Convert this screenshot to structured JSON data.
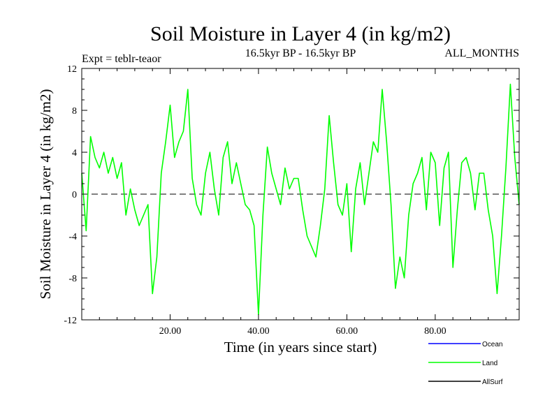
{
  "chart_data": {
    "type": "line",
    "title": "Soil Moisture in Layer 4 (in kg/m2)",
    "subtitle": "16.5kyr BP - 16.5kyr BP",
    "experiment": "Expt = teblr-teaor",
    "period": "ALL_MONTHS",
    "xlabel": "Time (in years since start)",
    "ylabel": "Soil Moisture in Layer 4 (in kg/m2)",
    "xlim": [
      0,
      99
    ],
    "ylim": [
      -12,
      12
    ],
    "x_ticks": [
      20,
      40,
      60,
      80
    ],
    "x_tick_labels": [
      "20.00",
      "40.00",
      "60.00",
      "80.00"
    ],
    "y_ticks": [
      -12,
      -8,
      -4,
      0,
      4,
      8,
      12
    ],
    "y_tick_labels": [
      "-12",
      "-8",
      "-4",
      "0",
      "4",
      "8",
      "12"
    ],
    "reference_line": 0,
    "legend": [
      {
        "name": "Ocean",
        "color": "#0000ff"
      },
      {
        "name": "Land",
        "color": "#00ff00"
      },
      {
        "name": "AllSurf",
        "color": "#000000"
      }
    ],
    "series": [
      {
        "name": "Land",
        "color": "#00ff00",
        "x": [
          0,
          1,
          2,
          3,
          4,
          5,
          6,
          7,
          8,
          9,
          10,
          11,
          12,
          13,
          14,
          15,
          16,
          17,
          18,
          19,
          20,
          21,
          22,
          23,
          24,
          25,
          26,
          27,
          28,
          29,
          30,
          31,
          32,
          33,
          34,
          35,
          36,
          37,
          38,
          39,
          40,
          41,
          42,
          43,
          44,
          45,
          46,
          47,
          48,
          49,
          50,
          51,
          52,
          53,
          54,
          55,
          56,
          57,
          58,
          59,
          60,
          61,
          62,
          63,
          64,
          65,
          66,
          67,
          68,
          69,
          70,
          71,
          72,
          73,
          74,
          75,
          76,
          77,
          78,
          79,
          80,
          81,
          82,
          83,
          84,
          85,
          86,
          87,
          88,
          89,
          90,
          91,
          92,
          93,
          94,
          95,
          96,
          97,
          98,
          99
        ],
        "values": [
          2.0,
          -3.5,
          5.5,
          3.5,
          2.5,
          4.0,
          2.0,
          3.5,
          1.5,
          3.0,
          -2.0,
          0.5,
          -1.5,
          -3.0,
          -2.0,
          -1.0,
          -9.5,
          -6.0,
          2.0,
          5.0,
          8.5,
          3.5,
          5.0,
          6.0,
          10.0,
          1.5,
          -1.0,
          -2.0,
          2.0,
          4.0,
          0.5,
          -2.0,
          3.5,
          5.0,
          1.0,
          3.0,
          1.0,
          -1.0,
          -1.5,
          -3.0,
          -11.5,
          -2.0,
          4.5,
          2.0,
          0.5,
          -1.0,
          2.5,
          0.5,
          1.5,
          1.5,
          -1.5,
          -4.0,
          -5.0,
          -6.0,
          -3.0,
          0.5,
          7.5,
          3.0,
          -1.0,
          -2.0,
          1.0,
          -5.5,
          0.5,
          3.0,
          -1.0,
          2.0,
          5.0,
          4.0,
          10.0,
          5.0,
          -1.0,
          -9.0,
          -6.0,
          -8.0,
          -2.0,
          1.0,
          2.0,
          3.5,
          -1.5,
          4.0,
          3.0,
          -3.0,
          2.5,
          4.0,
          -7.0,
          -1.5,
          3.0,
          3.5,
          2.0,
          -1.5,
          2.0,
          2.0,
          -1.5,
          -4.0,
          -9.5,
          -4.0,
          2.5,
          10.5,
          3.5,
          -1.0
        ]
      }
    ]
  }
}
